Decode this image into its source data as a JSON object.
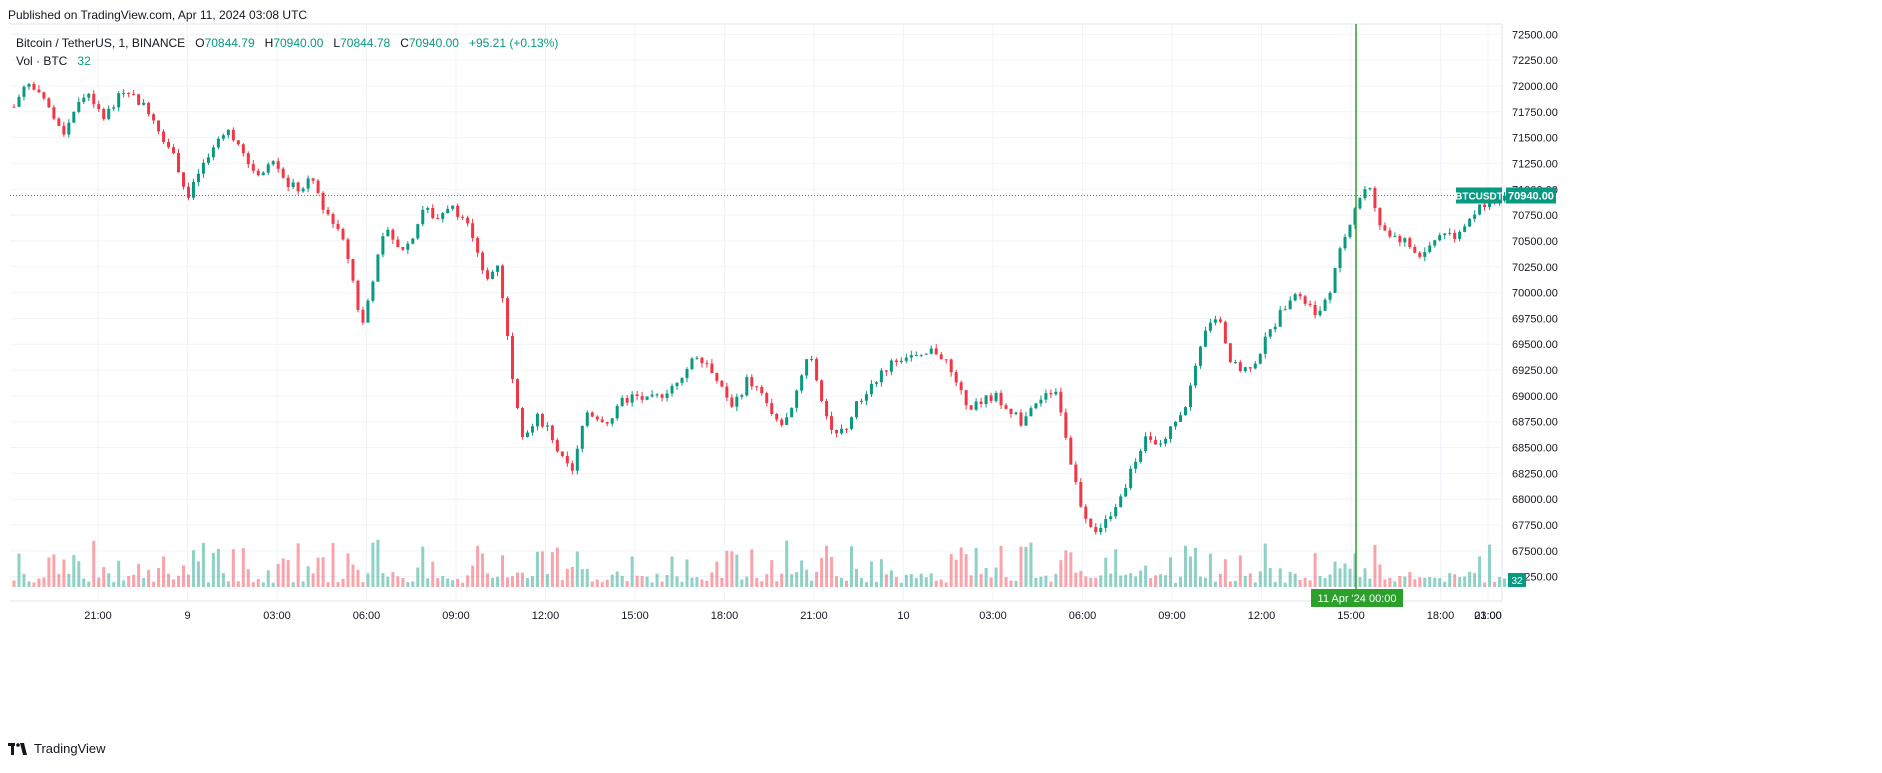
{
  "published": "Published on TradingView.com, Apr 11, 2024 03:08 UTC",
  "legend": {
    "symbol": "Bitcoin / TetherUS, 1, BINANCE",
    "o_label": "O",
    "o_val": "70844.79",
    "h_label": "H",
    "h_val": "70940.00",
    "l_label": "L",
    "l_val": "70844.78",
    "c_label": "C",
    "c_val": "70940.00",
    "change": "+95.21 (+0.13%)",
    "vol_label": "Vol · BTC",
    "vol_val": "32"
  },
  "footer": {
    "brand": "TradingView"
  },
  "price_tag": {
    "symbol": "BTCUSDT",
    "value": "70940.00"
  },
  "vol_tag": "32",
  "crosshair_label": "11 Apr '24   00:00",
  "colors": {
    "up": "#089981",
    "down": "#f23645",
    "crosshair": "#2ba02b",
    "grid": "#f0f3fa"
  },
  "chart_data": {
    "type": "candlestick",
    "title": "Bitcoin / TetherUS, 1, BINANCE",
    "y_ticks": [
      "72500.00",
      "72250.00",
      "72000.00",
      "71750.00",
      "71500.00",
      "71250.00",
      "71000.00",
      "70750.00",
      "70500.00",
      "70250.00",
      "70000.00",
      "69750.00",
      "69500.00",
      "69250.00",
      "69000.00",
      "68750.00",
      "68500.00",
      "68250.00",
      "68000.00",
      "67750.00",
      "67500.00",
      "67250.00"
    ],
    "ylim": [
      67150,
      72600
    ],
    "x_ticks": [
      "21:00",
      "9",
      "03:00",
      "06:00",
      "09:00",
      "12:00",
      "15:00",
      "18:00",
      "21:00",
      "10",
      "03:00",
      "06:00",
      "09:00",
      "12:00",
      "15:00",
      "18:00",
      "21:00",
      "03:00"
    ],
    "last_price": 70940.0,
    "price_path": [
      [
        0,
        71800
      ],
      [
        2,
        72050
      ],
      [
        4,
        71900
      ],
      [
        6,
        71750
      ],
      [
        8,
        71550
      ],
      [
        10,
        71800
      ],
      [
        12,
        71950
      ],
      [
        14,
        71700
      ],
      [
        16,
        71800
      ],
      [
        18,
        72000
      ],
      [
        20,
        71850
      ],
      [
        22,
        71750
      ],
      [
        24,
        71500
      ],
      [
        26,
        71300
      ],
      [
        28,
        70900
      ],
      [
        30,
        71200
      ],
      [
        32,
        71350
      ],
      [
        34,
        71600
      ],
      [
        36,
        71450
      ],
      [
        38,
        71200
      ],
      [
        40,
        71150
      ],
      [
        42,
        71300
      ],
      [
        44,
        71050
      ],
      [
        46,
        71000
      ],
      [
        48,
        71100
      ],
      [
        50,
        70800
      ],
      [
        52,
        70650
      ],
      [
        54,
        70300
      ],
      [
        56,
        69650
      ],
      [
        58,
        70200
      ],
      [
        60,
        70650
      ],
      [
        62,
        70400
      ],
      [
        64,
        70500
      ],
      [
        66,
        70850
      ],
      [
        68,
        70700
      ],
      [
        70,
        70850
      ],
      [
        72,
        70750
      ],
      [
        74,
        70550
      ],
      [
        76,
        70100
      ],
      [
        78,
        70300
      ],
      [
        80,
        69300
      ],
      [
        82,
        68600
      ],
      [
        84,
        68800
      ],
      [
        86,
        68700
      ],
      [
        88,
        68400
      ],
      [
        90,
        68250
      ],
      [
        92,
        68850
      ],
      [
        94,
        68800
      ],
      [
        96,
        68750
      ],
      [
        98,
        68950
      ],
      [
        100,
        69000
      ],
      [
        102,
        68950
      ],
      [
        104,
        69000
      ],
      [
        106,
        69100
      ],
      [
        108,
        69250
      ],
      [
        110,
        69400
      ],
      [
        112,
        69300
      ],
      [
        114,
        69050
      ],
      [
        116,
        68900
      ],
      [
        118,
        69150
      ],
      [
        120,
        69050
      ],
      [
        122,
        68800
      ],
      [
        124,
        68700
      ],
      [
        126,
        69050
      ],
      [
        128,
        69450
      ],
      [
        130,
        69000
      ],
      [
        132,
        68600
      ],
      [
        134,
        68700
      ],
      [
        136,
        68950
      ],
      [
        138,
        69100
      ],
      [
        140,
        69250
      ],
      [
        142,
        69350
      ],
      [
        144,
        69400
      ],
      [
        146,
        69350
      ],
      [
        148,
        69450
      ],
      [
        150,
        69350
      ],
      [
        152,
        69050
      ],
      [
        154,
        68900
      ],
      [
        156,
        68950
      ],
      [
        158,
        69000
      ],
      [
        160,
        68900
      ],
      [
        162,
        68750
      ],
      [
        164,
        68850
      ],
      [
        166,
        69050
      ],
      [
        168,
        69050
      ],
      [
        170,
        68400
      ],
      [
        172,
        67900
      ],
      [
        174,
        67700
      ],
      [
        176,
        67800
      ],
      [
        178,
        68000
      ],
      [
        180,
        68300
      ],
      [
        182,
        68600
      ],
      [
        184,
        68500
      ],
      [
        186,
        68650
      ],
      [
        188,
        68800
      ],
      [
        190,
        69200
      ],
      [
        192,
        69650
      ],
      [
        194,
        69800
      ],
      [
        196,
        69300
      ],
      [
        198,
        69250
      ],
      [
        200,
        69350
      ],
      [
        202,
        69600
      ],
      [
        204,
        69800
      ],
      [
        206,
        70000
      ],
      [
        208,
        69900
      ],
      [
        210,
        69800
      ],
      [
        212,
        70050
      ],
      [
        214,
        70500
      ],
      [
        216,
        70850
      ],
      [
        218,
        71050
      ],
      [
        220,
        70650
      ],
      [
        222,
        70550
      ],
      [
        224,
        70500
      ],
      [
        226,
        70350
      ],
      [
        228,
        70450
      ],
      [
        230,
        70600
      ],
      [
        232,
        70550
      ],
      [
        234,
        70700
      ],
      [
        236,
        70850
      ],
      [
        238,
        70900
      ],
      [
        240,
        70940
      ]
    ]
  }
}
